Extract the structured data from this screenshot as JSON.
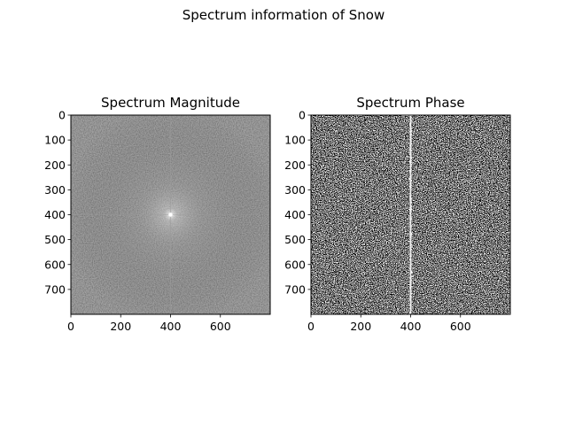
{
  "figure": {
    "suptitle": "Spectrum information of Snow"
  },
  "chart_data": [
    {
      "type": "heatmap",
      "title": "Spectrum Magnitude",
      "xlabel": "",
      "ylabel": "",
      "xlim": [
        0,
        800
      ],
      "ylim": [
        800,
        0
      ],
      "xticks": [
        0,
        200,
        400,
        600
      ],
      "yticks": [
        0,
        100,
        200,
        300,
        400,
        500,
        600,
        700
      ],
      "colormap": "gray",
      "grid": false,
      "image_size": [
        800,
        800
      ],
      "center_peak": [
        400,
        400
      ]
    },
    {
      "type": "heatmap",
      "title": "Spectrum Phase",
      "xlabel": "",
      "ylabel": "",
      "xlim": [
        0,
        800
      ],
      "ylim": [
        800,
        0
      ],
      "xticks": [
        0,
        200,
        400,
        600
      ],
      "yticks": [
        0,
        100,
        200,
        300,
        400,
        500,
        600,
        700
      ],
      "colormap": "gray",
      "grid": false,
      "image_size": [
        800,
        800
      ],
      "bright_column_x": 400
    }
  ]
}
